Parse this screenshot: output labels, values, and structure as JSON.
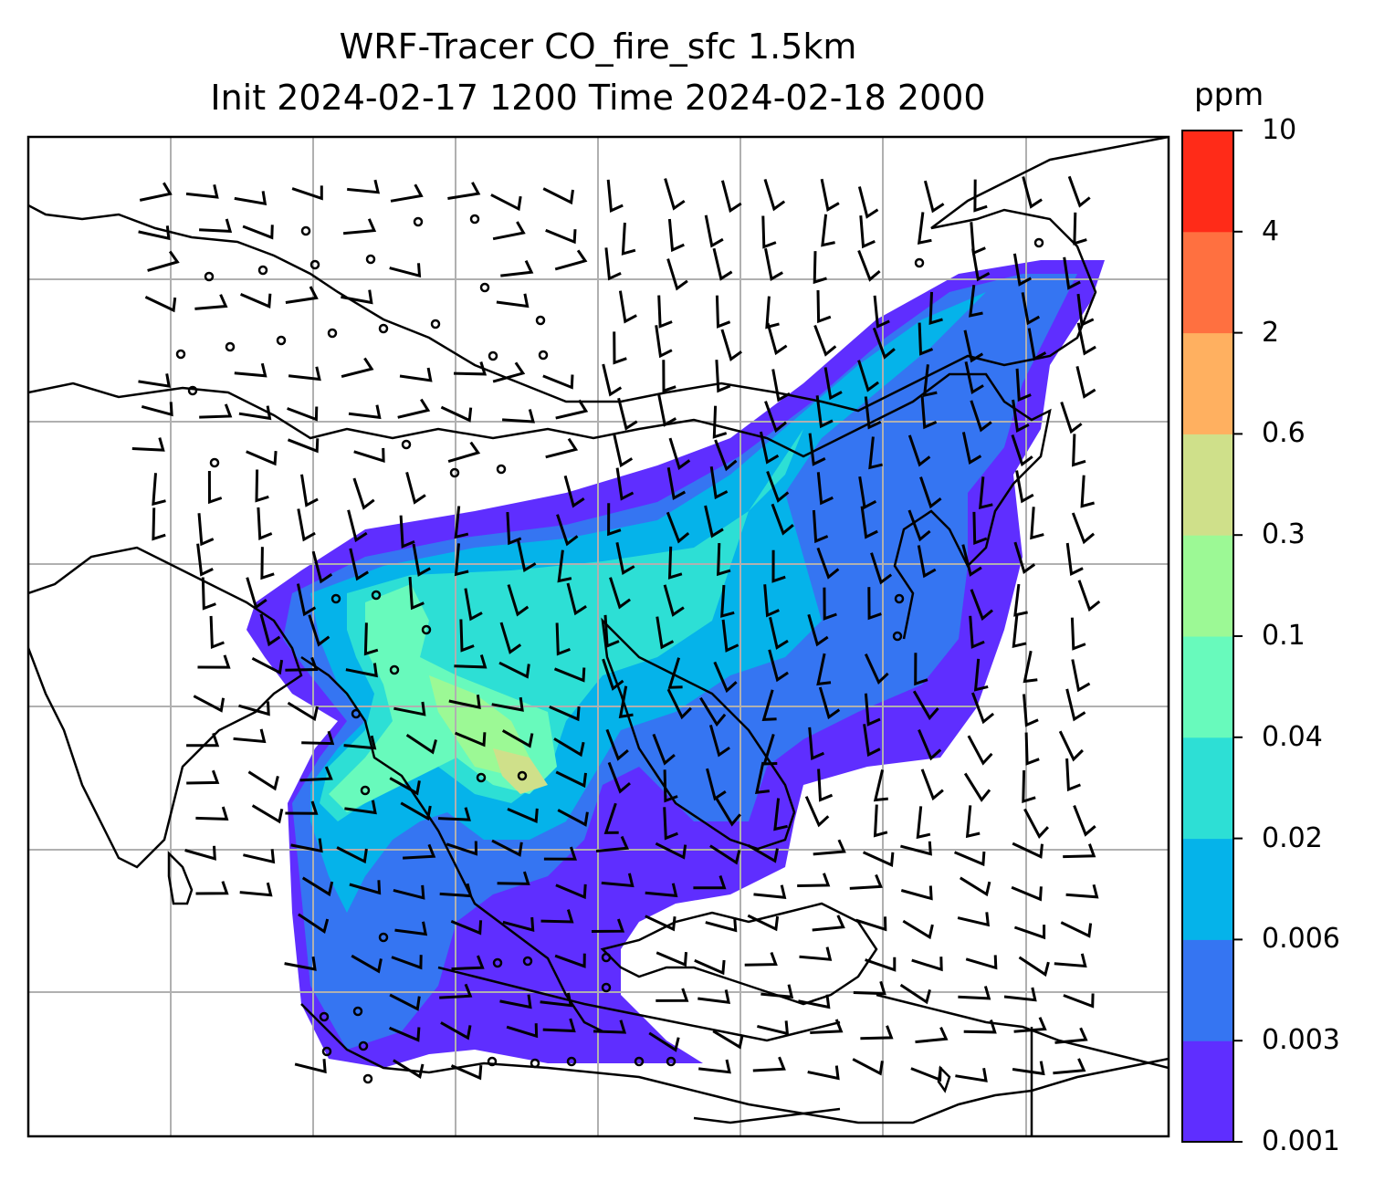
{
  "title": {
    "line1": "WRF-Tracer CO_fire_sfc 1.5km",
    "line2": "Init 2024-02-17 1200 Time 2024-02-18 2000"
  },
  "colorbar": {
    "unit": "ppm",
    "levels": [
      "0.001",
      "0.003",
      "0.006",
      "0.02",
      "0.04",
      "0.1",
      "0.3",
      "0.6",
      "2",
      "4",
      "10"
    ],
    "colors": [
      "#5f2eff",
      "#3575f2",
      "#05b3ea",
      "#2ddfd5",
      "#68fabc",
      "#9cf995",
      "#cfe08a",
      "#ffb060",
      "#ff7040",
      "#ff2b18"
    ]
  },
  "map": {
    "gridlines": true,
    "features": [
      "coastlines",
      "country-borders",
      "wind-barbs",
      "calm-wind-circles",
      "CO-tracer-shading"
    ]
  }
}
